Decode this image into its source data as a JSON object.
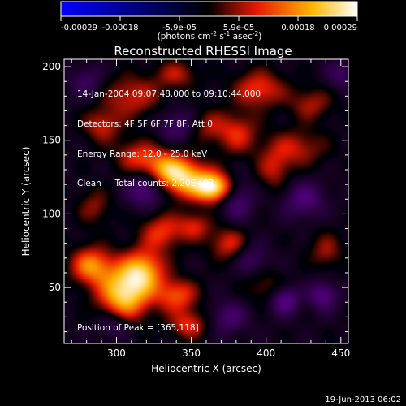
{
  "chart_data": {
    "type": "heatmap",
    "title": "Reconstructed RHESSI Image",
    "xlabel": "Heliocentric X (arcsec)",
    "ylabel": "Heliocentric Y (arcsec)",
    "xlim": [
      265,
      455
    ],
    "ylim": [
      12,
      205
    ],
    "x_ticks": [
      "300",
      "350",
      "400",
      "450"
    ],
    "y_ticks": [
      "50",
      "100",
      "150",
      "200"
    ],
    "colorbar": {
      "ticks": [
        "-0.00029",
        "-0.00018",
        "-5.9e-05",
        "5.9e-05",
        "0.00018",
        "0.00029"
      ],
      "min": -0.00029,
      "max": 0.00029,
      "unit_prefix": "(photons cm",
      "unit_sup1": "-2",
      "unit_mid": " s",
      "unit_sup2": "-1",
      "unit_mid2": " asec",
      "unit_sup3": "-2",
      "unit_suffix": ")"
    },
    "colormap": [
      "#0000ff",
      "#000000",
      "#e81800",
      "#ffb800",
      "#ffffff"
    ],
    "sources": [
      {
        "x": 365,
        "y": 118,
        "sx": 9,
        "sy": 7,
        "v": 1.0
      },
      {
        "x": 345,
        "y": 124,
        "sx": 12,
        "sy": 9,
        "v": 0.78
      },
      {
        "x": 330,
        "y": 132,
        "sx": 12,
        "sy": 9,
        "v": 0.6
      },
      {
        "x": 312,
        "y": 140,
        "sx": 10,
        "sy": 8,
        "v": 0.35
      },
      {
        "x": 305,
        "y": 46,
        "sx": 12,
        "sy": 13,
        "v": 0.95
      },
      {
        "x": 318,
        "y": 62,
        "sx": 10,
        "sy": 10,
        "v": 0.7
      },
      {
        "x": 283,
        "y": 65,
        "sx": 10,
        "sy": 9,
        "v": 0.68
      },
      {
        "x": 340,
        "y": 45,
        "sx": 10,
        "sy": 8,
        "v": 0.55
      },
      {
        "x": 348,
        "y": 25,
        "sx": 9,
        "sy": 7,
        "v": 0.45
      },
      {
        "x": 330,
        "y": 88,
        "sx": 10,
        "sy": 9,
        "v": 0.48
      },
      {
        "x": 352,
        "y": 92,
        "sx": 8,
        "sy": 7,
        "v": 0.4
      },
      {
        "x": 375,
        "y": 80,
        "sx": 9,
        "sy": 8,
        "v": 0.45
      },
      {
        "x": 395,
        "y": 185,
        "sx": 12,
        "sy": 9,
        "v": 0.5
      },
      {
        "x": 380,
        "y": 155,
        "sx": 10,
        "sy": 10,
        "v": 0.45
      },
      {
        "x": 420,
        "y": 145,
        "sx": 14,
        "sy": 9,
        "v": 0.38
      },
      {
        "x": 430,
        "y": 175,
        "sx": 10,
        "sy": 8,
        "v": 0.35
      },
      {
        "x": 405,
        "y": 130,
        "sx": 8,
        "sy": 10,
        "v": 0.35
      },
      {
        "x": 310,
        "y": 180,
        "sx": 14,
        "sy": 10,
        "v": 0.42
      },
      {
        "x": 290,
        "y": 160,
        "sx": 9,
        "sy": 8,
        "v": 0.4
      },
      {
        "x": 340,
        "y": 195,
        "sx": 10,
        "sy": 7,
        "v": 0.35
      },
      {
        "x": 440,
        "y": 75,
        "sx": 8,
        "sy": 9,
        "v": 0.32
      },
      {
        "x": 400,
        "y": 50,
        "sx": 10,
        "sy": 8,
        "v": 0.28
      },
      {
        "x": 285,
        "y": 105,
        "sx": 8,
        "sy": 9,
        "v": 0.3
      },
      {
        "x": 360,
        "y": 160,
        "sx": 8,
        "sy": 8,
        "v": 0.3
      },
      {
        "x": 320,
        "y": 118,
        "sx": 9,
        "sy": 9,
        "v": -0.55
      },
      {
        "x": 412,
        "y": 42,
        "sx": 7,
        "sy": 7,
        "v": -0.55
      },
      {
        "x": 438,
        "y": 45,
        "sx": 7,
        "sy": 7,
        "v": -0.45
      },
      {
        "x": 298,
        "y": 25,
        "sx": 8,
        "sy": 7,
        "v": -0.35
      },
      {
        "x": 380,
        "y": 110,
        "sx": 8,
        "sy": 10,
        "v": -0.4
      },
      {
        "x": 340,
        "y": 160,
        "sx": 9,
        "sy": 8,
        "v": -0.35
      },
      {
        "x": 425,
        "y": 110,
        "sx": 10,
        "sy": 9,
        "v": -0.4
      },
      {
        "x": 375,
        "y": 30,
        "sx": 9,
        "sy": 8,
        "v": -0.35
      },
      {
        "x": 280,
        "y": 190,
        "sx": 8,
        "sy": 8,
        "v": -0.3
      },
      {
        "x": 450,
        "y": 195,
        "sx": 7,
        "sy": 7,
        "v": -0.3
      },
      {
        "x": 390,
        "y": 70,
        "sx": 8,
        "sy": 8,
        "v": -0.3
      }
    ]
  },
  "info": {
    "line1": "14-Jan-2004 09:07:48.000 to 09:10:44.000",
    "line2": "Detectors: 4F 5F 6F 7F 8F, Att 0",
    "line3": "Energy Range: 12.0 - 25.0 keV",
    "line4": "Clean     Total counts: 2.20E+03",
    "peak": "Position of Peak = [365,118]"
  },
  "footer": {
    "datestamp": "19-Jun-2013 06:02"
  }
}
